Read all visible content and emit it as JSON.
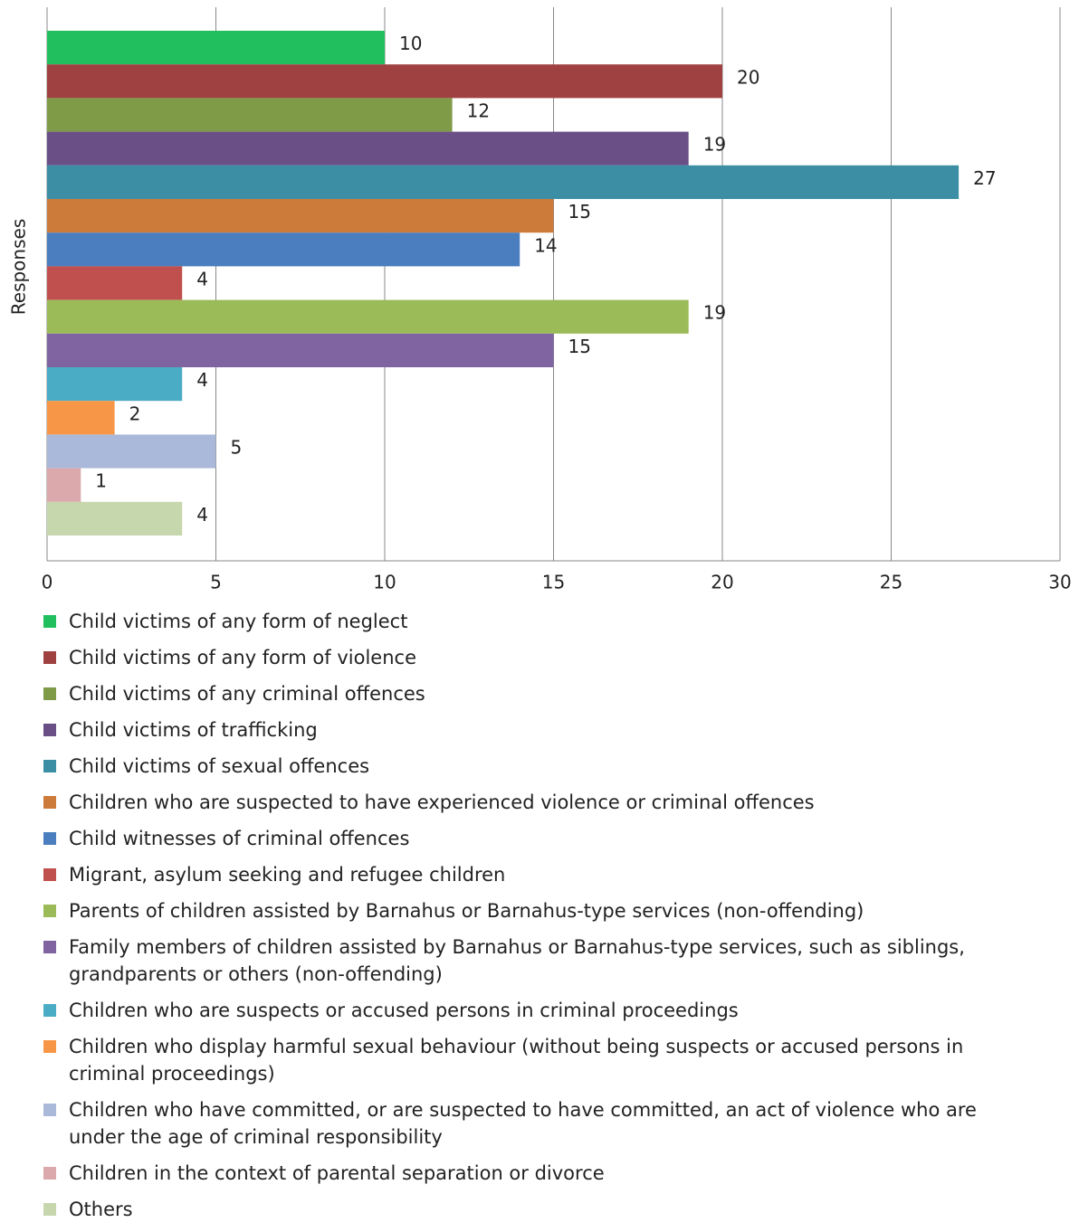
{
  "chart_data": {
    "type": "barh",
    "y_label": "Responses",
    "xlim": [
      0,
      30
    ],
    "xticks": [
      0,
      5,
      10,
      15,
      20,
      25,
      30
    ],
    "grid": true,
    "series": [
      {
        "name": "Child victims of any form of neglect",
        "color": "#22bf5e",
        "values": [
          10
        ]
      },
      {
        "name": "Child victims of any form of violence",
        "color": "#a04141",
        "values": [
          20
        ]
      },
      {
        "name": "Child victims of any criminal offences",
        "color": "#7f9b48",
        "values": [
          12
        ]
      },
      {
        "name": "Child victims of trafficking",
        "color": "#6a4f87",
        "values": [
          19
        ]
      },
      {
        "name": "Child victims of sexual offences",
        "color": "#3c8ea5",
        "values": [
          27
        ]
      },
      {
        "name": "Children who are suspected to have experienced violence or criminal offences",
        "color": "#cd7b3a",
        "values": [
          15
        ]
      },
      {
        "name": "Child witnesses of criminal offences",
        "color": "#4a7ebf",
        "values": [
          14
        ]
      },
      {
        "name": "Migrant, asylum seeking and refugee children",
        "color": "#c0504d",
        "values": [
          4
        ]
      },
      {
        "name": "Parents of children assisted by Barnahus or Barnahus-type services (non-offending)",
        "color": "#9bbb59",
        "values": [
          19
        ]
      },
      {
        "name": "Family members of children assisted by Barnahus or Barnahus-type services, such as siblings, grandparents or others (non-offending)",
        "color": "#8064a2",
        "values": [
          15
        ]
      },
      {
        "name": "Children who are suspects or accused persons in criminal proceedings",
        "color": "#4bacc6",
        "values": [
          4
        ]
      },
      {
        "name": "Children who display harmful sexual behaviour (without being suspects or accused persons in criminal proceedings)",
        "color": "#f79646",
        "values": [
          2
        ]
      },
      {
        "name": "Children who have committed, or are suspected to have committed, an act of violence who are under the age of criminal responsibility",
        "color": "#aab9d9",
        "values": [
          5
        ]
      },
      {
        "name": "Children in the context of parental separation or divorce",
        "color": "#dba9ab",
        "values": [
          1
        ]
      },
      {
        "name": "Others",
        "color": "#c6d6ad",
        "values": [
          4
        ]
      }
    ]
  }
}
